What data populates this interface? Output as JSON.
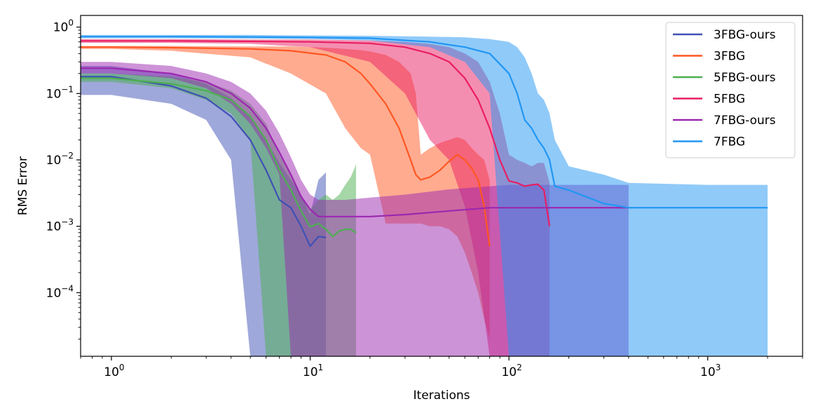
{
  "chart_data": {
    "type": "line",
    "xlabel": "Iterations",
    "ylabel": "RMS Error",
    "xscale": "log",
    "yscale": "log",
    "xlim": [
      0.7,
      3000
    ],
    "ylim": [
      1.1e-05,
      1.5
    ],
    "x_ticks": [
      {
        "value": 1,
        "mantissa": "10",
        "exp": "0"
      },
      {
        "value": 10,
        "mantissa": "10",
        "exp": "1"
      },
      {
        "value": 100,
        "mantissa": "10",
        "exp": "2"
      },
      {
        "value": 1000,
        "mantissa": "10",
        "exp": "3"
      }
    ],
    "y_ticks": [
      {
        "value": 1,
        "mantissa": "10",
        "exp": "0"
      },
      {
        "value": 0.1,
        "mantissa": "10",
        "exp": "−1"
      },
      {
        "value": 0.01,
        "mantissa": "10",
        "exp": "−2"
      },
      {
        "value": 0.001,
        "mantissa": "10",
        "exp": "−3"
      },
      {
        "value": 0.0001,
        "mantissa": "10",
        "exp": "−4"
      }
    ],
    "legend_position": "top-right",
    "series": [
      {
        "name": "3FBG-ours",
        "color": "#3f51b5",
        "x": [
          0.7,
          1,
          2,
          3,
          4,
          5,
          6,
          7,
          8,
          9,
          10,
          11,
          12
        ],
        "y": [
          0.18,
          0.18,
          0.13,
          0.085,
          0.045,
          0.02,
          0.007,
          0.0025,
          0.0019,
          0.001,
          0.0005,
          0.0007,
          0.00068
        ],
        "band_upper": [
          0.26,
          0.26,
          0.2,
          0.14,
          0.085,
          0.045,
          0.02,
          0.009,
          0.005,
          0.003,
          0.0015,
          0.005,
          0.0065
        ],
        "band_lower": [
          0.095,
          0.095,
          0.07,
          0.04,
          0.01,
          1.09e-05,
          1.09e-05,
          1.09e-05,
          1.09e-05,
          1.09e-05,
          1.09e-05,
          1.09e-05,
          1.09e-05
        ]
      },
      {
        "name": "3FBG",
        "color": "#ff5722",
        "x": [
          0.7,
          1,
          2,
          5,
          8,
          12,
          15,
          18,
          20,
          24,
          28,
          32,
          34,
          36,
          40,
          45,
          50,
          55,
          60,
          65,
          70,
          75,
          80
        ],
        "y": [
          0.5,
          0.5,
          0.49,
          0.47,
          0.44,
          0.38,
          0.3,
          0.2,
          0.14,
          0.07,
          0.03,
          0.01,
          0.006,
          0.005,
          0.0055,
          0.007,
          0.0095,
          0.012,
          0.01,
          0.0075,
          0.005,
          0.002,
          0.0005
        ],
        "band_upper": [
          0.52,
          0.52,
          0.52,
          0.51,
          0.51,
          0.49,
          0.47,
          0.45,
          0.43,
          0.38,
          0.3,
          0.2,
          0.1,
          0.012,
          0.015,
          0.018,
          0.02,
          0.022,
          0.02,
          0.015,
          0.012,
          0.01,
          0.005
        ],
        "band_lower": [
          0.47,
          0.47,
          0.44,
          0.35,
          0.2,
          0.1,
          0.03,
          0.015,
          0.012,
          0.0011,
          0.0011,
          0.0011,
          0.0011,
          0.0011,
          0.001,
          0.001,
          0.0009,
          0.0007,
          0.0004,
          0.0002,
          0.0001,
          4e-05,
          2e-05
        ]
      },
      {
        "name": "5FBG-ours",
        "color": "#4caf50",
        "x": [
          0.7,
          1,
          2,
          3,
          4,
          5,
          6,
          7,
          8,
          9,
          10,
          11,
          12,
          13,
          14,
          15,
          16,
          17
        ],
        "y": [
          0.17,
          0.17,
          0.14,
          0.11,
          0.08,
          0.045,
          0.02,
          0.007,
          0.0035,
          0.0017,
          0.00098,
          0.0011,
          0.0009,
          0.0007,
          0.00085,
          0.0009,
          0.0009,
          0.0008
        ],
        "band_upper": [
          0.2,
          0.2,
          0.18,
          0.15,
          0.11,
          0.07,
          0.035,
          0.012,
          0.006,
          0.003,
          0.0018,
          0.0025,
          0.003,
          0.0025,
          0.003,
          0.0042,
          0.0055,
          0.0085
        ],
        "band_lower": [
          0.15,
          0.15,
          0.12,
          0.08,
          0.05,
          0.02,
          1.09e-05,
          1.09e-05,
          1.09e-05,
          1.09e-05,
          1.09e-05,
          1.09e-05,
          1.09e-05,
          1.09e-05,
          1.09e-05,
          1.09e-05,
          1.09e-05,
          1.09e-05
        ]
      },
      {
        "name": "5FBG",
        "color": "#e91e63",
        "x": [
          0.7,
          1,
          2,
          5,
          10,
          20,
          30,
          40,
          50,
          60,
          70,
          80,
          90,
          100,
          110,
          120,
          130,
          140,
          150,
          160
        ],
        "y": [
          0.62,
          0.62,
          0.62,
          0.61,
          0.6,
          0.57,
          0.5,
          0.4,
          0.3,
          0.17,
          0.08,
          0.03,
          0.01,
          0.0048,
          0.0045,
          0.004,
          0.0042,
          0.0043,
          0.0035,
          0.001
        ],
        "band_upper": [
          0.66,
          0.66,
          0.66,
          0.65,
          0.65,
          0.63,
          0.6,
          0.56,
          0.5,
          0.4,
          0.3,
          0.15,
          0.05,
          0.012,
          0.01,
          0.009,
          0.008,
          0.009,
          0.009,
          0.0045
        ],
        "band_lower": [
          0.58,
          0.58,
          0.58,
          0.56,
          0.5,
          0.3,
          0.1,
          0.02,
          0.01,
          0.002,
          0.0002,
          1.09e-05,
          1.09e-05,
          1.09e-05,
          1.09e-05,
          1.09e-05,
          1.09e-05,
          1.09e-05,
          1.09e-05,
          1.09e-05
        ]
      },
      {
        "name": "7FBG-ours",
        "color": "#9c27b0",
        "x": [
          0.7,
          1,
          2,
          3,
          4,
          5,
          6,
          7,
          8,
          9,
          10,
          11,
          12,
          15,
          20,
          30,
          50,
          80,
          100,
          200,
          400
        ],
        "y": [
          0.24,
          0.24,
          0.2,
          0.15,
          0.1,
          0.06,
          0.03,
          0.013,
          0.006,
          0.0028,
          0.0018,
          0.0014,
          0.0014,
          0.0014,
          0.0014,
          0.0015,
          0.0017,
          0.0019,
          0.0019,
          0.0019,
          0.0019
        ],
        "band_upper": [
          0.3,
          0.3,
          0.26,
          0.2,
          0.15,
          0.1,
          0.055,
          0.025,
          0.011,
          0.005,
          0.003,
          0.0025,
          0.0025,
          0.0025,
          0.0027,
          0.003,
          0.0036,
          0.004,
          0.0042,
          0.0042,
          0.0042
        ],
        "band_lower": [
          0.2,
          0.2,
          0.17,
          0.12,
          0.07,
          0.035,
          0.015,
          0.006,
          1.09e-05,
          1.09e-05,
          1.09e-05,
          1.09e-05,
          1.09e-05,
          1.09e-05,
          1.09e-05,
          1.09e-05,
          1.09e-05,
          1.09e-05,
          1.09e-05,
          1.09e-05,
          1.09e-05
        ]
      },
      {
        "name": "7FBG",
        "color": "#2196f3",
        "x": [
          0.7,
          1,
          2,
          5,
          10,
          20,
          40,
          60,
          80,
          100,
          110,
          120,
          130,
          140,
          150,
          160,
          170,
          200,
          300,
          400,
          1000,
          2000
        ],
        "y": [
          0.72,
          0.72,
          0.72,
          0.71,
          0.7,
          0.68,
          0.6,
          0.5,
          0.4,
          0.2,
          0.1,
          0.04,
          0.03,
          0.02,
          0.015,
          0.01,
          0.004,
          0.0035,
          0.0022,
          0.0019,
          0.0019,
          0.0019
        ],
        "band_upper": [
          0.76,
          0.76,
          0.76,
          0.76,
          0.75,
          0.74,
          0.72,
          0.7,
          0.66,
          0.6,
          0.5,
          0.35,
          0.2,
          0.1,
          0.08,
          0.05,
          0.02,
          0.008,
          0.006,
          0.0045,
          0.0042,
          0.0042
        ],
        "band_lower": [
          0.68,
          0.68,
          0.68,
          0.67,
          0.66,
          0.63,
          0.5,
          0.3,
          0.1,
          1.09e-05,
          1.09e-05,
          1.09e-05,
          1.09e-05,
          1.09e-05,
          1.09e-05,
          1.09e-05,
          1.09e-05,
          1.09e-05,
          1.09e-05,
          1.09e-05,
          1.09e-05,
          1.09e-05
        ]
      }
    ]
  }
}
